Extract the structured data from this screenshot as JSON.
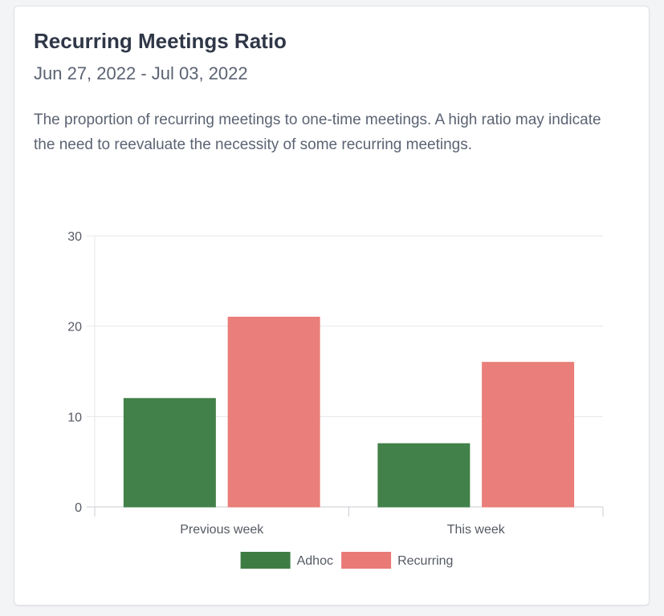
{
  "card": {
    "title": "Recurring Meetings Ratio",
    "date_range": "Jun 27, 2022 - Jul 03, 2022",
    "description": "The proportion of recurring meetings to one-time meetings. A high ratio may indicate the need to reevaluate the necessity of some recurring meetings."
  },
  "chart_data": {
    "type": "bar",
    "categories": [
      "Previous week",
      "This week"
    ],
    "series": [
      {
        "name": "Adhoc",
        "values": [
          12,
          7
        ],
        "color": "#3d7d44"
      },
      {
        "name": "Recurring",
        "values": [
          21,
          16
        ],
        "color": "#e97a76"
      }
    ],
    "yticks": [
      0,
      10,
      20,
      30
    ],
    "ylim": [
      0,
      30
    ],
    "grid": true,
    "legend": "bottom"
  }
}
